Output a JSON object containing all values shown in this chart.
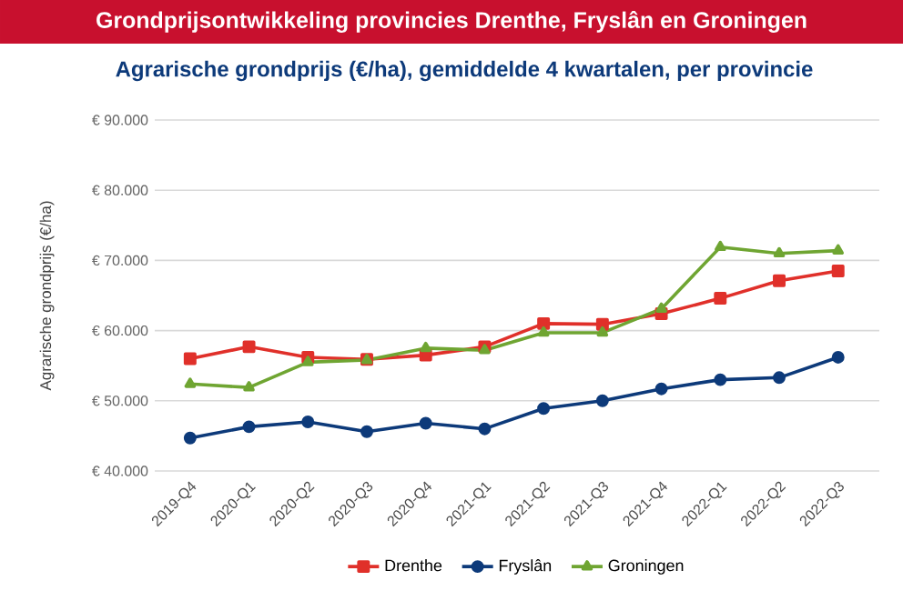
{
  "chart_data": {
    "type": "line",
    "title": "Grondprijsontwikkeling provincies Drenthe, Fryslân en Groningen",
    "subtitle": "Agrarische grondprijs (€/ha), gemiddelde 4 kwartalen, per provincie",
    "ylabel": "Agrarische grondprijs (€/ha)",
    "categories": [
      "2019-Q4",
      "2020-Q1",
      "2020-Q2",
      "2020-Q3",
      "2020-Q4",
      "2021-Q1",
      "2021-Q2",
      "2021-Q3",
      "2021-Q4",
      "2022-Q1",
      "2022-Q2",
      "2022-Q3"
    ],
    "series": [
      {
        "name": "Drenthe",
        "color": "#e0302a",
        "marker": "square",
        "values": [
          56000,
          57700,
          56200,
          55900,
          56500,
          57700,
          61000,
          60900,
          62400,
          64600,
          67100,
          68500
        ]
      },
      {
        "name": "Fryslân",
        "color": "#0d3a7a",
        "marker": "circle",
        "values": [
          44700,
          46300,
          47000,
          45600,
          46800,
          46000,
          48900,
          50000,
          51700,
          53000,
          53300,
          56200
        ]
      },
      {
        "name": "Groningen",
        "color": "#6fa532",
        "marker": "triangle",
        "values": [
          52400,
          51900,
          55500,
          55800,
          57500,
          57200,
          59700,
          59700,
          63100,
          71900,
          71000,
          71400
        ]
      }
    ],
    "ylim": [
      40000,
      90000
    ],
    "yticks": [
      {
        "value": 40000,
        "label": "€ 40.000"
      },
      {
        "value": 50000,
        "label": "€ 50.000"
      },
      {
        "value": 60000,
        "label": "€ 60.000"
      },
      {
        "value": 70000,
        "label": "€ 70.000"
      },
      {
        "value": 80000,
        "label": "€ 80.000"
      },
      {
        "value": 90000,
        "label": "€ 90.000"
      }
    ],
    "grid": "y",
    "legend": "bottom",
    "line_style": "solid"
  }
}
